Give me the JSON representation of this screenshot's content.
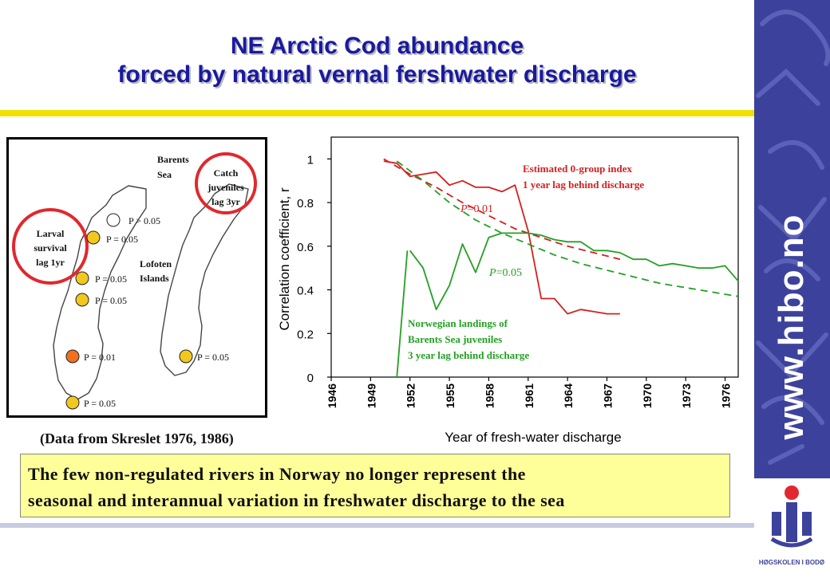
{
  "title": {
    "line1": "NE Arctic Cod abundance",
    "line2": "forced by natural vernal fershwater discharge"
  },
  "sidebar": {
    "url": "www.hibo.no",
    "logo_text": "HØGSKOLEN I BODØ"
  },
  "map": {
    "labels": {
      "barents": [
        "Barents",
        "Sea"
      ],
      "lofoten": [
        "Lofoten",
        "Islands"
      ],
      "larval": [
        "Larval",
        "survival",
        "lag 1yr"
      ],
      "catch": [
        "Catch",
        "juveniles",
        "lag 3yr"
      ]
    },
    "stations": [
      {
        "label": "P > 0.05",
        "color": "#ffffff"
      },
      {
        "label": "P = 0.05",
        "color": "#f2c81e"
      },
      {
        "label": "P = 0.05",
        "color": "#f2c81e"
      },
      {
        "label": "P = 0.05",
        "color": "#f2c81e"
      },
      {
        "label": "P = 0.01",
        "color": "#f07020"
      },
      {
        "label": "P = 0.05",
        "color": "#f2c81e"
      },
      {
        "label": "P = 0.05",
        "color": "#f2c81e"
      }
    ],
    "circle_color": "#e0282e"
  },
  "source": "(Data from Skreslet 1976, 1986)",
  "note": {
    "line1": "The few non-regulated rivers in Norway no longer represent the",
    "line2": "seasonal and interannual variation in freshwater discharge to the sea"
  },
  "chart_data": {
    "type": "line",
    "xlabel": "Year of fresh-water discharge",
    "ylabel": "Correlation coefficient, r",
    "xlim": [
      1946,
      1977
    ],
    "ylim": [
      0,
      1.1
    ],
    "xticks": [
      1946,
      1949,
      1952,
      1955,
      1958,
      1961,
      1964,
      1967,
      1970,
      1973,
      1976
    ],
    "yticks": [
      0,
      0.2,
      0.4,
      0.6,
      0.8,
      1
    ],
    "ytick_labels": [
      "0",
      "0.2",
      "0.4",
      "0.6",
      "0.8",
      "1"
    ],
    "grid": false,
    "series": [
      {
        "color": "#d42020",
        "style": "solid",
        "x": [
          1950,
          1951,
          1952,
          1953,
          1954,
          1955,
          1956,
          1957,
          1958,
          1959,
          1960,
          1961,
          1962,
          1963,
          1964,
          1965,
          1966,
          1967,
          1968
        ],
        "y": [
          0.99,
          0.98,
          0.92,
          0.93,
          0.94,
          0.88,
          0.9,
          0.87,
          0.87,
          0.85,
          0.88,
          0.67,
          0.36,
          0.36,
          0.29,
          0.31,
          0.3,
          0.29,
          0.29
        ]
      },
      {
        "color": "#d42020",
        "style": "dashed",
        "x": [
          1950,
          1952,
          1954,
          1956,
          1958,
          1960,
          1962,
          1964,
          1966,
          1968
        ],
        "y": [
          1.0,
          0.93,
          0.87,
          0.8,
          0.74,
          0.68,
          0.64,
          0.6,
          0.57,
          0.54
        ]
      },
      {
        "color": "#24a024",
        "style": "solid",
        "x": [
          1952,
          1953,
          1954,
          1955,
          1956,
          1957,
          1958,
          1959,
          1960,
          1961,
          1962,
          1963,
          1964,
          1965,
          1966,
          1967,
          1968,
          1969,
          1970,
          1971,
          1972,
          1973,
          1974,
          1975,
          1976,
          1977
        ],
        "y": [
          0.58,
          0.5,
          0.31,
          0.42,
          0.61,
          0.48,
          0.64,
          0.66,
          0.66,
          0.66,
          0.65,
          0.63,
          0.62,
          0.62,
          0.58,
          0.58,
          0.57,
          0.54,
          0.54,
          0.51,
          0.52,
          0.51,
          0.5,
          0.5,
          0.51,
          0.44
        ]
      },
      {
        "color": "#24a024",
        "style": "dashed",
        "x": [
          1951,
          1953,
          1955,
          1957,
          1959,
          1961,
          1963,
          1965,
          1967,
          1969,
          1971,
          1973,
          1975,
          1977
        ],
        "y": [
          0.99,
          0.9,
          0.8,
          0.72,
          0.66,
          0.61,
          0.56,
          0.52,
          0.49,
          0.46,
          0.43,
          0.41,
          0.39,
          0.37
        ]
      }
    ],
    "green_rise": {
      "x": [
        1951.0,
        1951.8
      ],
      "y": [
        0.0,
        0.58
      ]
    },
    "annotations": [
      {
        "lines": [
          "Estimated 0-group index",
          "1 year lag behind discharge"
        ],
        "color": "#d42020"
      },
      {
        "lines": [
          "Norwegian landings of",
          "Barents Sea juveniles",
          "3 year lag behind discharge"
        ],
        "color": "#24a024"
      },
      {
        "italic": "P",
        "text": "=0.01",
        "color": "#d42020"
      },
      {
        "italic": "P",
        "text": "=0.05",
        "color": "#24a024"
      }
    ]
  }
}
